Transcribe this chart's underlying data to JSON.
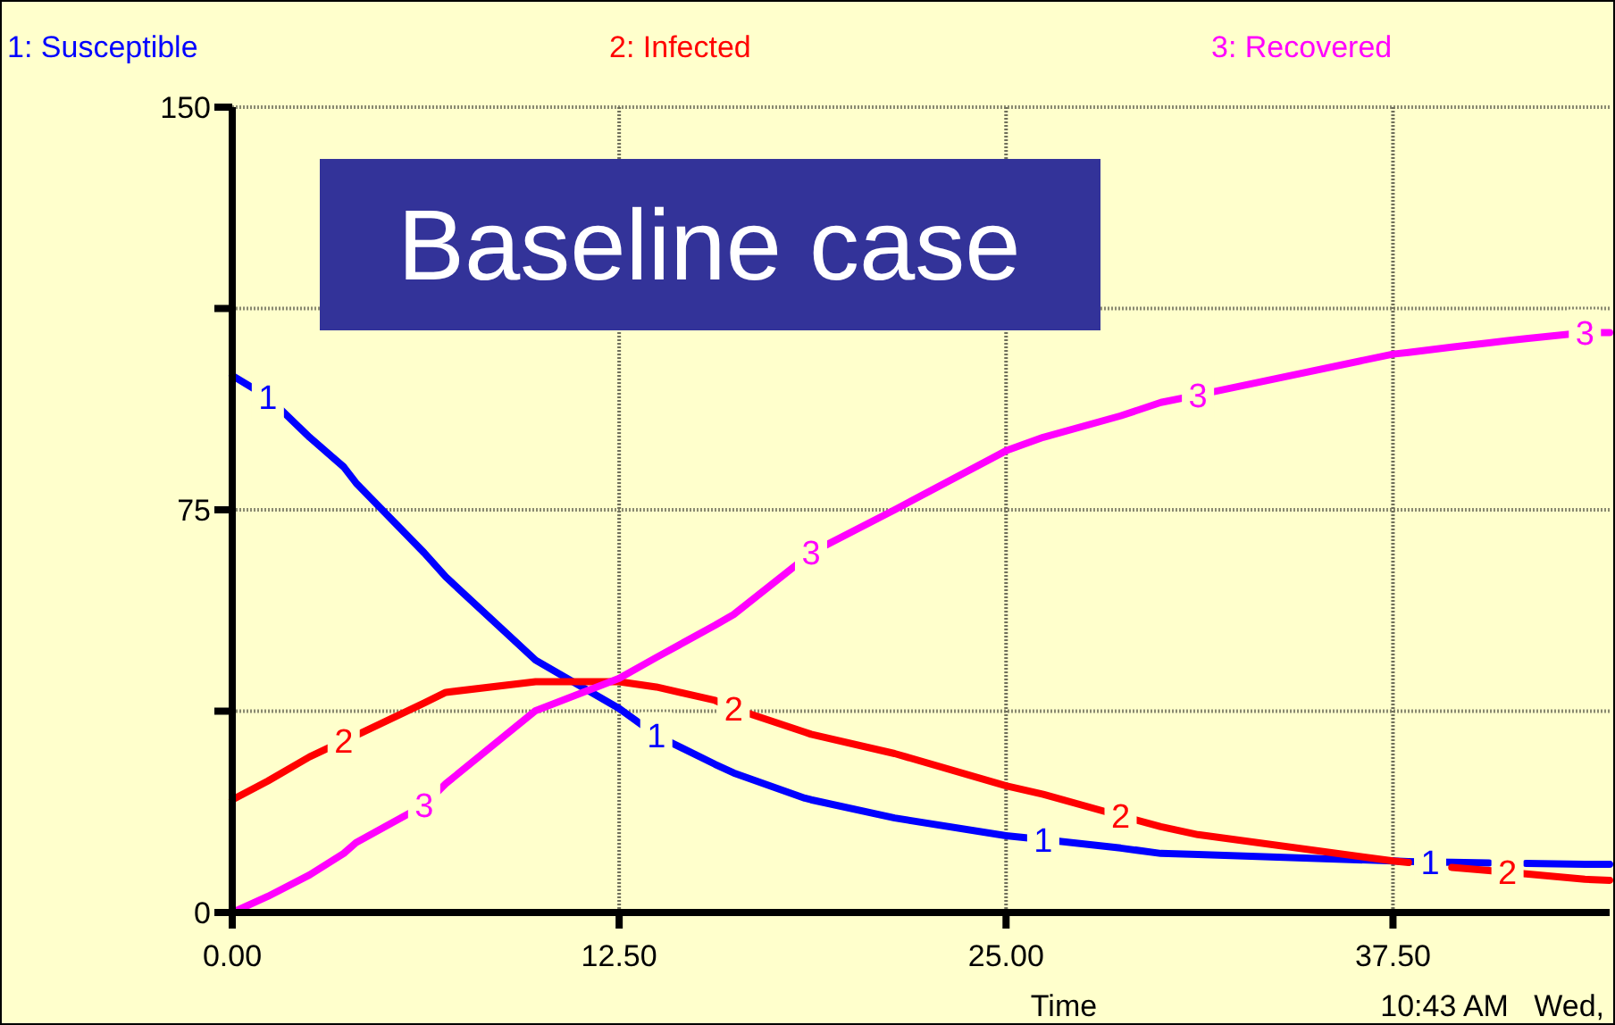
{
  "chart_data": {
    "type": "line",
    "title": "Baseline case",
    "xlabel": "Time",
    "x": [
      0,
      1.15,
      2.5,
      3.6,
      4,
      6.2,
      6.9,
      9.8,
      12.5,
      13.7,
      15.6,
      16.2,
      18.5,
      18.7,
      21.4,
      25,
      26.2,
      28.7,
      30,
      31.2,
      37.5,
      38.0,
      38.7,
      39.4,
      40.6,
      41.2,
      41.8,
      43.7,
      44.5
    ],
    "xlim": [
      0,
      44.5
    ],
    "xticks": [
      {
        "value": 0,
        "label": "0.00"
      },
      {
        "value": 12.5,
        "label": "12.50"
      },
      {
        "value": 25,
        "label": "25.00"
      },
      {
        "value": 37.5,
        "label": "37.50"
      }
    ],
    "ylim": [
      0,
      150
    ],
    "yticks": [
      0,
      {
        "value": 37.5,
        "label": null
      },
      75,
      {
        "value": 112.5,
        "label": null
      },
      150
    ],
    "grid": true,
    "legend": "top",
    "line_style": "solid",
    "marker": "none",
    "series": [
      {
        "name": "1: Susceptible",
        "color": "#0000ff",
        "values": [
          100,
          96,
          88.5,
          83,
          80,
          67,
          62.5,
          47,
          38,
          33,
          27.6,
          26,
          21.3,
          21,
          17.6,
          14.3,
          13.6,
          12,
          11,
          10.8,
          9.6,
          9.5,
          9.4,
          9.35,
          9.25,
          null,
          9.15,
          9,
          9
        ]
      },
      {
        "name": "2: Infected",
        "color": "#ff0000",
        "values": [
          21,
          24.5,
          29,
          32,
          33,
          39,
          41,
          43,
          43,
          42,
          39.5,
          38,
          33.6,
          33.2,
          29.6,
          23.6,
          22,
          18,
          16,
          14.5,
          9.6,
          9.3,
          null,
          8.4,
          7.8,
          7.5,
          7.2,
          6.2,
          6
        ]
      },
      {
        "name": "3: Recovered",
        "color": "#ff00ff",
        "values": [
          0,
          3,
          7,
          11,
          13,
          20,
          24,
          37.6,
          43.6,
          47.5,
          53.5,
          55.5,
          66,
          67,
          75,
          86,
          88.5,
          92.5,
          95,
          96.4,
          104,
          104.3,
          104.8,
          105.3,
          106.1,
          106.5,
          106.9,
          108,
          108
        ]
      }
    ],
    "annotations": [
      {
        "text": "1",
        "x": 1.15,
        "y": 96
      },
      {
        "text": "1",
        "x": 13.7,
        "y": 33
      },
      {
        "text": "1",
        "x": 26.2,
        "y": 13.6
      },
      {
        "text": "1",
        "x": 38.7,
        "y": 9.4
      },
      {
        "text": "2",
        "x": 3.6,
        "y": 32
      },
      {
        "text": "2",
        "x": 16.2,
        "y": 38
      },
      {
        "text": "2",
        "x": 28.7,
        "y": 18
      },
      {
        "text": "2",
        "x": 41.2,
        "y": 7.5
      },
      {
        "text": "3",
        "x": 6.2,
        "y": 20
      },
      {
        "text": "3",
        "x": 18.7,
        "y": 67
      },
      {
        "text": "3",
        "x": 31.2,
        "y": 96.4
      },
      {
        "text": "3",
        "x": 43.7,
        "y": 108
      },
      "10:43 AM   Wed,"
    ]
  }
}
